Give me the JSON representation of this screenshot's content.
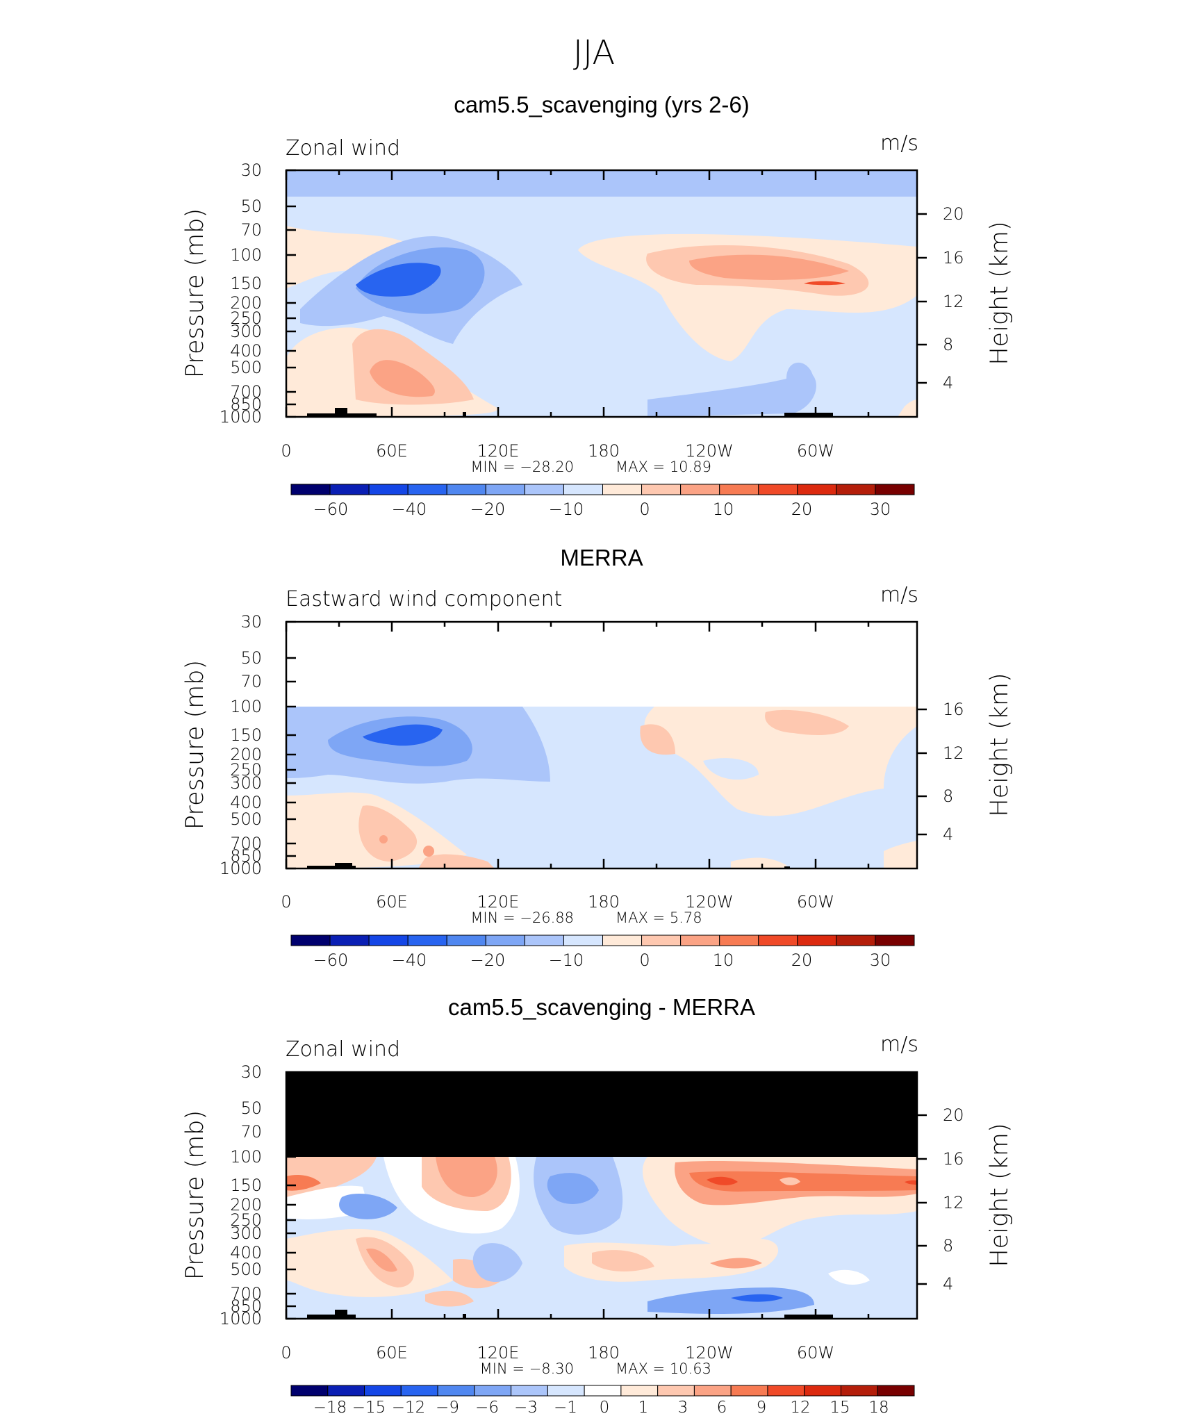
{
  "main_title": "JJA",
  "colors": {
    "full_scale": [
      "#00006e",
      "#0a1fb4",
      "#1446e6",
      "#2864f0",
      "#5087f0",
      "#7ea6f5",
      "#abc5fa",
      "#d6e6fe",
      "#ffead9",
      "#fec8b0",
      "#fba385",
      "#f77b53",
      "#f04a28",
      "#dc2a0f",
      "#b41e0a",
      "#780000"
    ],
    "diff_scale": [
      "#00006e",
      "#0a1fb4",
      "#1446e6",
      "#2864f0",
      "#5087f0",
      "#7ea6f5",
      "#abc5fa",
      "#d6e6fe",
      "#ffffff",
      "#ffead9",
      "#fec8b0",
      "#fba385",
      "#f77b53",
      "#f04a28",
      "#dc2a0f",
      "#b41e0a",
      "#780000"
    ],
    "topography": "#000000",
    "missing": "#000000"
  },
  "chart_data": [
    {
      "type": "heatmap",
      "title": "cam5.5_scavenging (yrs 2-6)",
      "left_label": "Zonal wind",
      "units": "m/s",
      "ylabel": "Pressure (mb)",
      "ylabel_right": "Height (km)",
      "x_tick_labels": [
        "0",
        "60E",
        "120E",
        "180",
        "120W",
        "60W"
      ],
      "y_tick_labels": [
        "30",
        "50",
        "70",
        "100",
        "150",
        "200",
        "250",
        "300",
        "400",
        "500",
        "700",
        "850",
        "1000"
      ],
      "height_tick_labels": [
        "20",
        "16",
        "12",
        "8",
        "4"
      ],
      "min_label": "MIN = −28.20",
      "max_label": "MAX = 10.89",
      "colorbar_labels": [
        "−60",
        "−40",
        "−20",
        "−10",
        "0",
        "10",
        "20",
        "30"
      ]
    },
    {
      "type": "heatmap",
      "title": "MERRA",
      "left_label": "Eastward wind component",
      "units": "m/s",
      "ylabel": "Pressure (mb)",
      "ylabel_right": "Height (km)",
      "x_tick_labels": [
        "0",
        "60E",
        "120E",
        "180",
        "120W",
        "60W"
      ],
      "y_tick_labels": [
        "30",
        "50",
        "70",
        "100",
        "150",
        "200",
        "250",
        "300",
        "400",
        "500",
        "700",
        "850",
        "1000"
      ],
      "height_tick_labels": [
        "16",
        "12",
        "8",
        "4"
      ],
      "min_label": "MIN = −26.88",
      "max_label": "MAX = 5.78",
      "colorbar_labels": [
        "−60",
        "−40",
        "−20",
        "−10",
        "0",
        "10",
        "20",
        "30"
      ]
    },
    {
      "type": "heatmap",
      "title": "cam5.5_scavenging - MERRA",
      "left_label": "Zonal wind",
      "units": "m/s",
      "ylabel": "Pressure (mb)",
      "ylabel_right": "Height (km)",
      "x_tick_labels": [
        "0",
        "60E",
        "120E",
        "180",
        "120W",
        "60W"
      ],
      "y_tick_labels": [
        "30",
        "50",
        "70",
        "100",
        "150",
        "200",
        "250",
        "300",
        "400",
        "500",
        "700",
        "850",
        "1000"
      ],
      "height_tick_labels": [
        "20",
        "16",
        "12",
        "8",
        "4"
      ],
      "min_label": "MIN = −8.30",
      "max_label": "MAX = 10.63",
      "colorbar_labels": [
        "−18",
        "−15",
        "−12",
        "−9",
        "−6",
        "−3",
        "−1",
        "0",
        "1",
        "3",
        "6",
        "9",
        "12",
        "15",
        "18"
      ]
    }
  ]
}
